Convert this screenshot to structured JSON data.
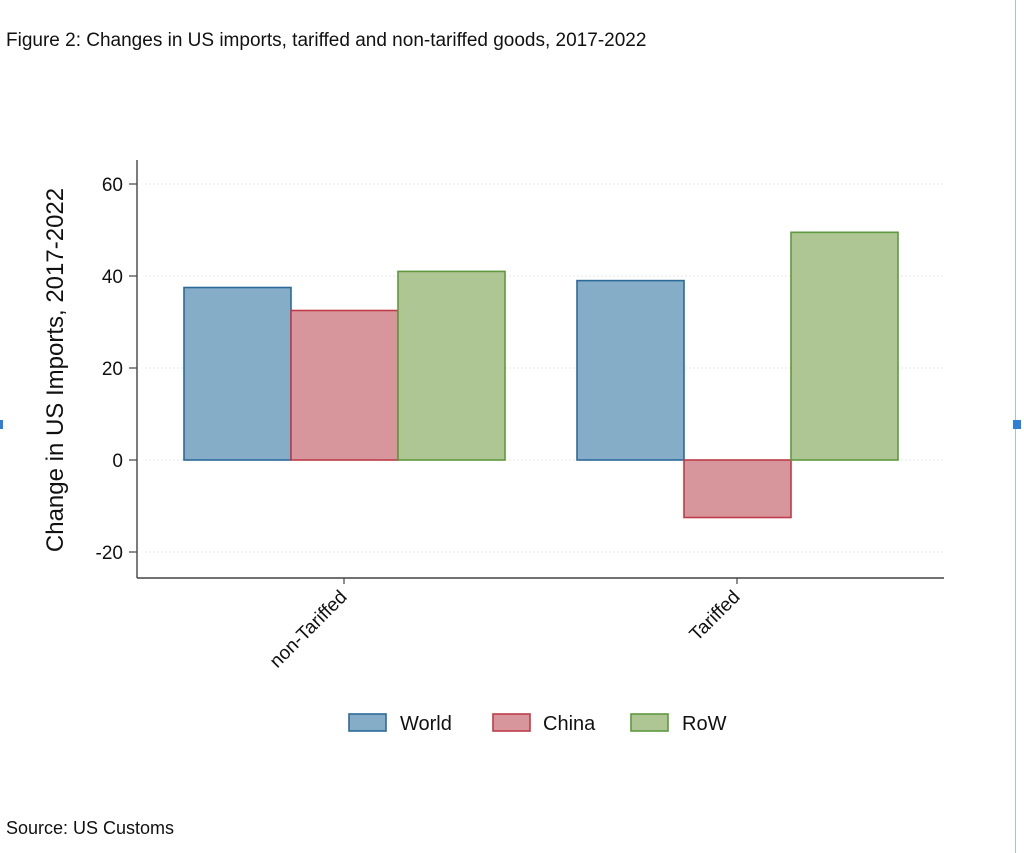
{
  "figure_title": "Figure 2: Changes in US imports, tariffed and non-tariffed goods, 2017-2022",
  "source_note": "Source: US Customs",
  "chart_data": {
    "type": "bar",
    "title": "",
    "xlabel": "",
    "ylabel": "Change in US Imports, 2017-2022",
    "categories": [
      "non-Tariffed",
      "Tariffed"
    ],
    "series": [
      {
        "name": "World",
        "values": [
          37.5,
          39
        ],
        "fill": "#86adc8",
        "stroke": "#2c6a9a"
      },
      {
        "name": "China",
        "values": [
          32.5,
          -12.5
        ],
        "fill": "#d6969b",
        "stroke": "#c03b4a"
      },
      {
        "name": "RoW",
        "values": [
          41,
          49.5
        ],
        "fill": "#aec594",
        "stroke": "#5e9a3d"
      }
    ],
    "ylim": [
      -26,
      66
    ],
    "yticks": [
      -20,
      0,
      20,
      40,
      60
    ],
    "ytick_labels": [
      "-20",
      "0",
      "20",
      "40",
      "60"
    ],
    "grid": true,
    "legend_position": "bottom"
  }
}
